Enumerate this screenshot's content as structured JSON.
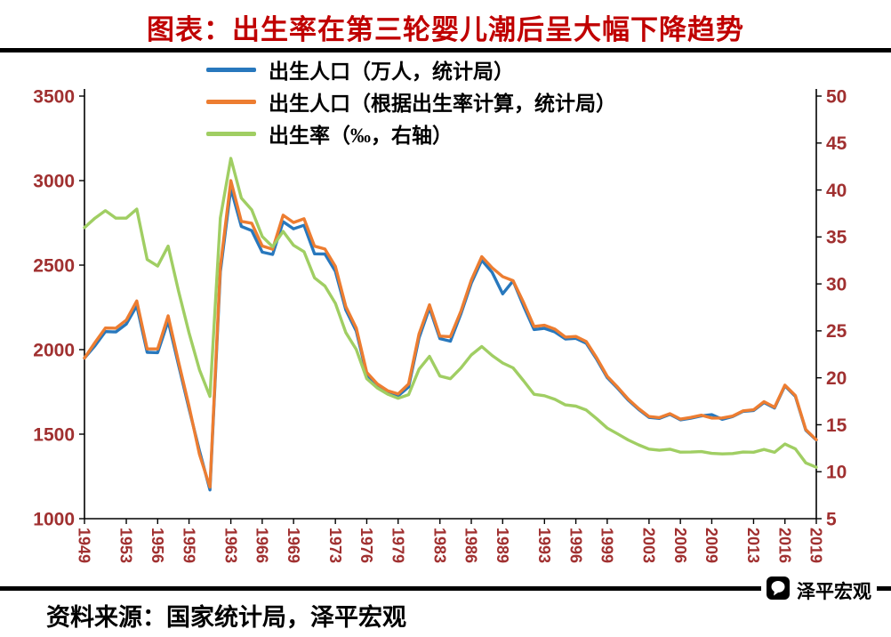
{
  "title": "图表：出生率在第三轮婴儿潮后呈大幅下降趋势",
  "source": "资料来源：国家统计局，泽平宏观",
  "watermark": "泽平宏观",
  "chart_data": {
    "type": "line",
    "x": [
      1949,
      1950,
      1951,
      1952,
      1953,
      1954,
      1955,
      1956,
      1957,
      1958,
      1959,
      1960,
      1961,
      1962,
      1963,
      1964,
      1965,
      1966,
      1967,
      1968,
      1969,
      1970,
      1971,
      1972,
      1973,
      1974,
      1975,
      1976,
      1977,
      1978,
      1979,
      1980,
      1981,
      1982,
      1983,
      1984,
      1985,
      1986,
      1987,
      1988,
      1989,
      1990,
      1991,
      1992,
      1993,
      1994,
      1995,
      1996,
      1997,
      1998,
      1999,
      2000,
      2001,
      2002,
      2003,
      2004,
      2005,
      2006,
      2007,
      2008,
      2009,
      2010,
      2011,
      2012,
      2013,
      2014,
      2015,
      2016,
      2017,
      2018,
      2019
    ],
    "series": [
      {
        "name": "出生人口（万人，统计局）",
        "axis": "left",
        "color": "#2878BD",
        "values": [
          1950,
          2023,
          2107,
          2105,
          2151,
          2260,
          1984,
          1982,
          2169,
          1909,
          1650,
          1402,
          1170,
          2460,
          2954,
          2729,
          2704,
          2577,
          2563,
          2757,
          2715,
          2736,
          2567,
          2566,
          2463,
          2235,
          2109,
          1853,
          1787,
          1745,
          1727,
          1779,
          2069,
          2247,
          2065,
          2050,
          2211,
          2393,
          2529,
          2457,
          2330,
          2407,
          2258,
          2119,
          2126,
          2104,
          2063,
          2067,
          2038,
          1942,
          1834,
          1771,
          1702,
          1647,
          1599,
          1593,
          1617,
          1585,
          1594,
          1608,
          1615,
          1588,
          1604,
          1635,
          1640,
          1687,
          1655,
          1786,
          1723,
          1523,
          1465
        ]
      },
      {
        "name": "出生人口（根据出生率计算，统计局）",
        "axis": "left",
        "color": "#ED7D31",
        "values": [
          1950,
          2042,
          2128,
          2127,
          2175,
          2288,
          2004,
          2004,
          2200,
          1928,
          1665,
          1381,
          1187,
          2491,
          3000,
          2759,
          2748,
          2613,
          2594,
          2795,
          2752,
          2774,
          2612,
          2595,
          2492,
          2255,
          2127,
          1866,
          1798,
          1757,
          1738,
          1797,
          2092,
          2265,
          2080,
          2077,
          2227,
          2411,
          2550,
          2484,
          2432,
          2408,
          2279,
          2137,
          2144,
          2121,
          2074,
          2078,
          2048,
          1951,
          1842,
          1778,
          1708,
          1652,
          1604,
          1598,
          1621,
          1589,
          1599,
          1612,
          1595,
          1596,
          1607,
          1638,
          1644,
          1692,
          1659,
          1790,
          1728,
          1527,
          1467
        ]
      },
      {
        "name": "出生率（‰，右轴）",
        "axis": "right",
        "color": "#A0CE63",
        "values": [
          36.0,
          37.0,
          37.8,
          37.0,
          37.0,
          37.97,
          32.6,
          31.9,
          34.03,
          29.22,
          24.78,
          20.86,
          18.02,
          37.01,
          43.37,
          39.14,
          37.88,
          35.05,
          33.96,
          35.59,
          34.11,
          33.43,
          30.65,
          29.77,
          27.93,
          24.82,
          23.01,
          19.91,
          18.93,
          18.25,
          17.82,
          18.21,
          20.91,
          22.28,
          20.19,
          19.9,
          21.04,
          22.43,
          23.33,
          22.37,
          21.58,
          21.06,
          19.68,
          18.24,
          18.09,
          17.7,
          17.12,
          16.98,
          16.57,
          15.64,
          14.64,
          14.03,
          13.38,
          12.86,
          12.41,
          12.29,
          12.4,
          12.09,
          12.1,
          12.14,
          11.95,
          11.9,
          11.93,
          12.1,
          12.08,
          12.37,
          12.07,
          12.95,
          12.43,
          10.94,
          10.48
        ]
      }
    ],
    "left_axis": {
      "min": 1000,
      "max": 3500,
      "ticks": [
        3500,
        3000,
        2500,
        2000,
        1500,
        1000
      ]
    },
    "right_axis": {
      "min": 5,
      "max": 50,
      "ticks": [
        50,
        45,
        40,
        35,
        30,
        25,
        20,
        15,
        10,
        5
      ]
    },
    "x_ticks": [
      1949,
      1953,
      1956,
      1959,
      1963,
      1966,
      1969,
      1973,
      1976,
      1979,
      1983,
      1986,
      1989,
      1993,
      1996,
      1999,
      2003,
      2006,
      2009,
      2013,
      2016,
      2019
    ],
    "grid": false,
    "legend_position": "top"
  }
}
